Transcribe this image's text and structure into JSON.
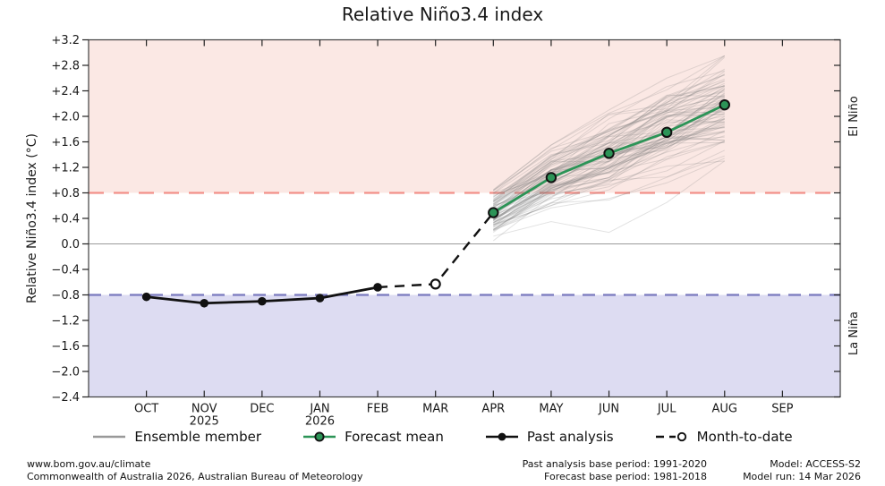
{
  "title": "Relative Niño3.4 index",
  "chart_data": {
    "type": "line",
    "title": "Relative Niño3.4 index",
    "ylabel": "Relative Niño3.4 index (°C)",
    "ylim": [
      -2.4,
      3.2
    ],
    "ytick_step": 0.4,
    "grid": "zero-line-only",
    "categories": [
      "OCT",
      "NOV",
      "DEC",
      "JAN",
      "FEB",
      "MAR",
      "APR",
      "MAY",
      "JUN",
      "JUL",
      "AUG",
      "SEP"
    ],
    "year_labels": [
      {
        "under": "NOV",
        "text": "2025"
      },
      {
        "under": "JAN",
        "text": "2026"
      }
    ],
    "thresholds": {
      "el_nino": 0.8,
      "la_nina": -0.8
    },
    "region_labels": [
      {
        "text": "El Niño",
        "color": "#e2837b",
        "band": "above_el_nino"
      },
      {
        "text": "La Niña",
        "color": "#7d7dbe",
        "band": "below_la_nina"
      }
    ],
    "series": [
      {
        "name": "Past analysis",
        "style": "solid-black-filled-markers",
        "x": [
          "OCT",
          "NOV",
          "DEC",
          "JAN",
          "FEB"
        ],
        "values": [
          -0.83,
          -0.93,
          -0.9,
          -0.85,
          -0.68
        ]
      },
      {
        "name": "Month-to-date",
        "style": "dashed-black-open-marker",
        "x": [
          "MAR"
        ],
        "values": [
          -0.63
        ],
        "connects_from": "FEB",
        "connects_to": "APR"
      },
      {
        "name": "Forecast mean",
        "style": "solid-green-filled-markers",
        "x": [
          "APR",
          "MAY",
          "JUN",
          "JUL",
          "AUG"
        ],
        "values": [
          0.49,
          1.04,
          1.42,
          1.75,
          2.18
        ]
      },
      {
        "name": "Ensemble member",
        "style": "thin-gray-fan",
        "count": 80,
        "x": [
          "APR",
          "MAY",
          "JUN",
          "JUL",
          "AUG"
        ],
        "spread_min": [
          0.05,
          0.45,
          0.65,
          0.95,
          1.3
        ],
        "spread_max": [
          0.9,
          1.55,
          2.05,
          2.55,
          2.95
        ],
        "outliers": [
          [
            0.12,
            0.35,
            0.18,
            0.65,
            1.3
          ],
          [
            0.3,
            0.6,
            1.0,
            1.05,
            1.38
          ],
          [
            0.85,
            1.55,
            2.1,
            2.6,
            2.95
          ]
        ]
      }
    ]
  },
  "legend": {
    "items": [
      {
        "label": "Ensemble member",
        "swatch": "ensemble"
      },
      {
        "label": "Forecast mean",
        "swatch": "mean"
      },
      {
        "label": "Past analysis",
        "swatch": "past"
      },
      {
        "label": "Month-to-date",
        "swatch": "mtd"
      }
    ]
  },
  "footer": {
    "site": "www.bom.gov.au/climate",
    "copyright": "Commonwealth of Australia 2026, Australian Bureau of Meteorology",
    "past_base": "Past analysis base period: 1991-2020",
    "forecast_base": "Forecast base period: 1981-2018",
    "model": "Model: ACCESS-S2",
    "model_run": "Model run: 14 Mar 2026"
  },
  "colors": {
    "el_nino_fill": "#fbe8e4",
    "la_nina_fill": "#dddcf2",
    "el_nino_line": "#f29089",
    "la_nina_line": "#7979be",
    "forecast_green": "#2c9457",
    "past_black": "#111111",
    "ensemble_gray": "rgba(125,125,125,0.22)",
    "legend_gray": "#999999",
    "zero_line": "#9a9a9a",
    "frame": "#3f3f3f",
    "tick": "#222222"
  }
}
